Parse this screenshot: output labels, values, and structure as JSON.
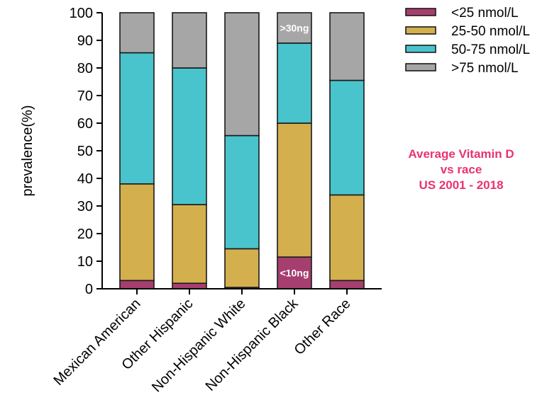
{
  "chart_data": {
    "type": "bar",
    "stacked": true,
    "categories": [
      "Mexican American",
      "Other Hispanic",
      "Non-Hispanic White",
      "Non-Hispanic Black",
      "Other Race"
    ],
    "series": [
      {
        "name": "<25 nmol/L",
        "color": "#a63e6f",
        "values": [
          3,
          2,
          0.5,
          11.5,
          3
        ]
      },
      {
        "name": "25-50 nmol/L",
        "color": "#d4af4e",
        "values": [
          35,
          28.5,
          14,
          48.5,
          31
        ]
      },
      {
        "name": "50-75 nmol/L",
        "color": "#49c4cc",
        "values": [
          47.5,
          49.5,
          41,
          29,
          41.5
        ]
      },
      {
        "name": ">75 nmol/L",
        "color": "#a6a6a6",
        "values": [
          14.5,
          20,
          44.5,
          11,
          24.5
        ]
      }
    ],
    "ylabel": "prevalence(%)",
    "xlabel": "",
    "ylim": [
      0,
      100
    ],
    "yticks": [
      0,
      10,
      20,
      30,
      40,
      50,
      60,
      70,
      80,
      90,
      100
    ],
    "legend_position": "top-right",
    "annotations": [
      {
        "text": ">30ng",
        "category": "Non-Hispanic Black",
        "series": ">75 nmol/L"
      },
      {
        "text": "<10ng",
        "category": "Non-Hispanic Black",
        "series": "<25 nmol/L"
      }
    ],
    "title_lines": [
      "Average Vitamin D",
      "vs race",
      "US 2001 - 2018"
    ]
  }
}
